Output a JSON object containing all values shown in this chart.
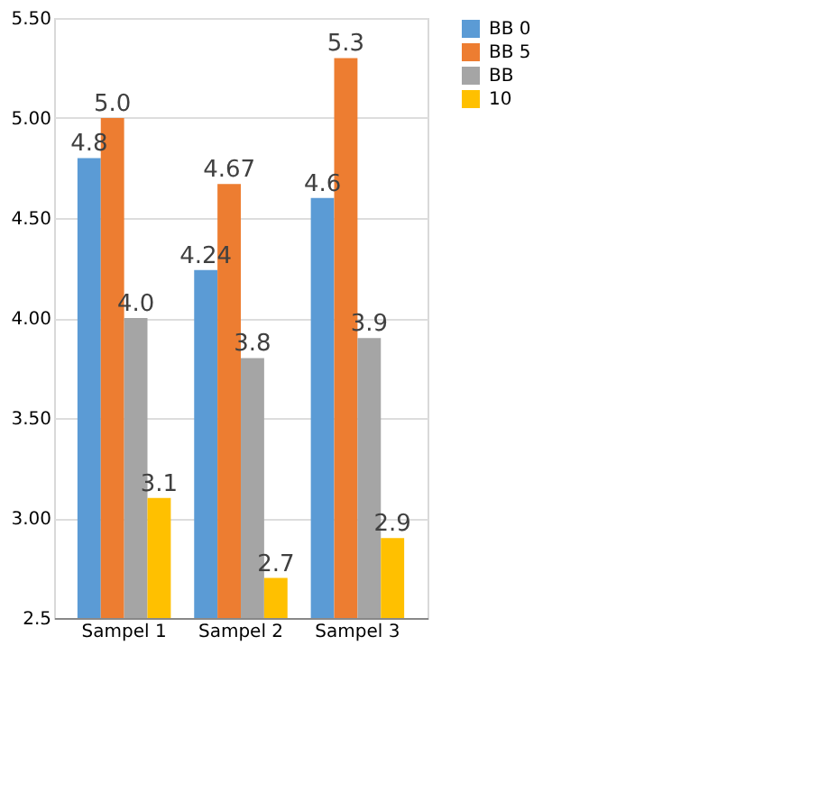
{
  "chart_data": {
    "type": "bar",
    "categories": [
      "Sampel 1",
      "Sampel 2",
      "Sampel 3"
    ],
    "series": [
      {
        "name": "BB 0",
        "color": "#5b9bd5",
        "values": [
          4.8,
          4.24,
          4.6
        ],
        "value_labels": [
          "4.8",
          "4.24",
          "4.6"
        ]
      },
      {
        "name": "BB 5",
        "color": "#ed7d31",
        "values": [
          5.0,
          4.67,
          5.3
        ],
        "value_labels": [
          "5.0",
          "4.67",
          "5.3"
        ]
      },
      {
        "name": "BB",
        "color": "#a5a5a5",
        "values": [
          4.0,
          3.8,
          3.9
        ],
        "value_labels": [
          "4.0",
          "3.8",
          "3.9"
        ]
      },
      {
        "name": "10",
        "color": "#ffc000",
        "values": [
          3.1,
          2.7,
          2.9
        ],
        "value_labels": [
          "3.1",
          "2.7",
          "2.9"
        ]
      }
    ],
    "ylim": [
      2.5,
      5.5
    ],
    "yticks": [
      {
        "value": 2.5,
        "label": "2.5"
      },
      {
        "value": 3.0,
        "label": "3.00"
      },
      {
        "value": 3.5,
        "label": "3.50"
      },
      {
        "value": 4.0,
        "label": "4.00"
      },
      {
        "value": 4.5,
        "label": "4.50"
      },
      {
        "value": 5.0,
        "label": "5.00"
      },
      {
        "value": 5.5,
        "label": "5.50"
      }
    ],
    "grid": "y",
    "legend": "right"
  }
}
